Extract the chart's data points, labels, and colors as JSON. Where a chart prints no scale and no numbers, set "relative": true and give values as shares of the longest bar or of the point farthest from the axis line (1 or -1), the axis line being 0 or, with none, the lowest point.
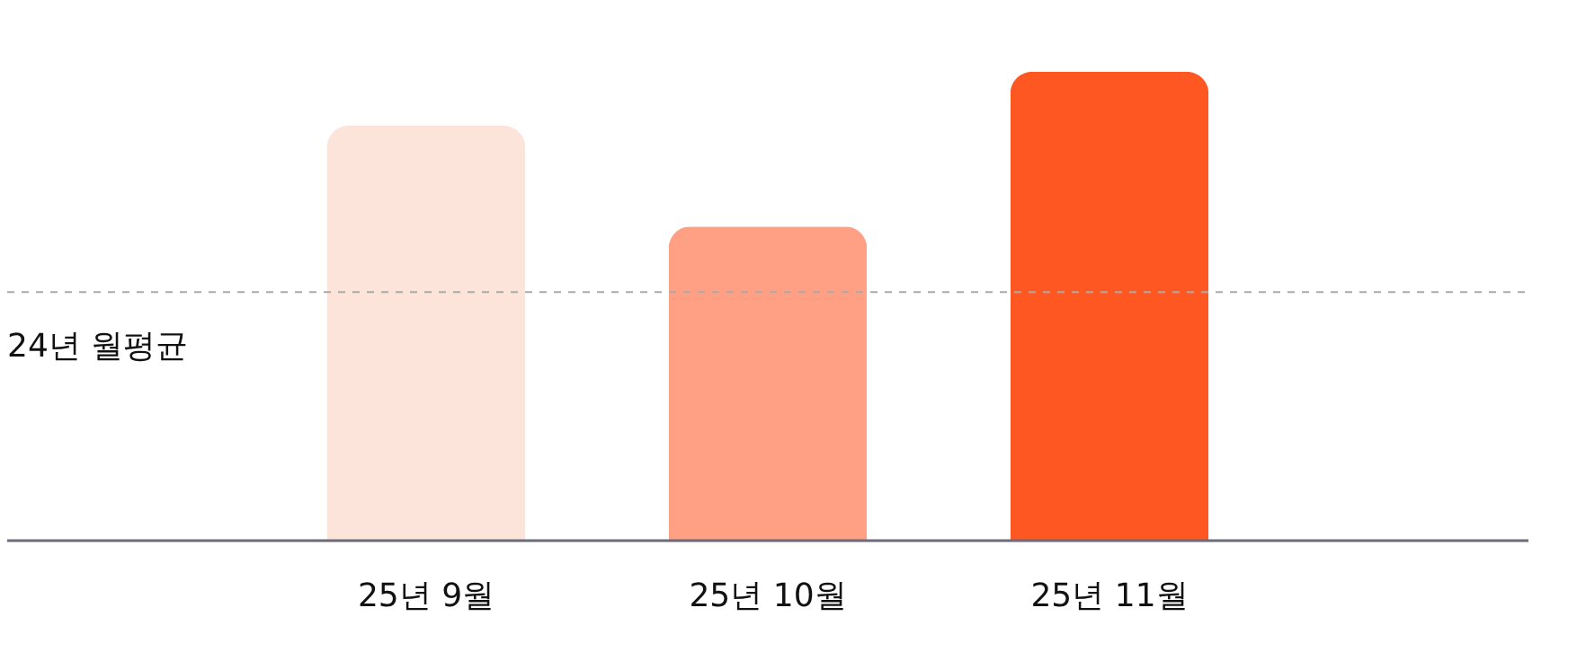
{
  "chart_data": {
    "type": "bar",
    "relative": true,
    "categories": [
      "25년 9월",
      "25년 10월",
      "25년 11월"
    ],
    "values": [
      0.885,
      0.67,
      1
    ],
    "colors": [
      "#fde4da",
      "#ffa084",
      "#ff5722"
    ],
    "ref_lines": [
      {
        "axis": "y",
        "value": 0.53,
        "label": "24년 월평균",
        "color": "#aaaaaa",
        "line_style": "dashed"
      }
    ],
    "grid": false
  }
}
